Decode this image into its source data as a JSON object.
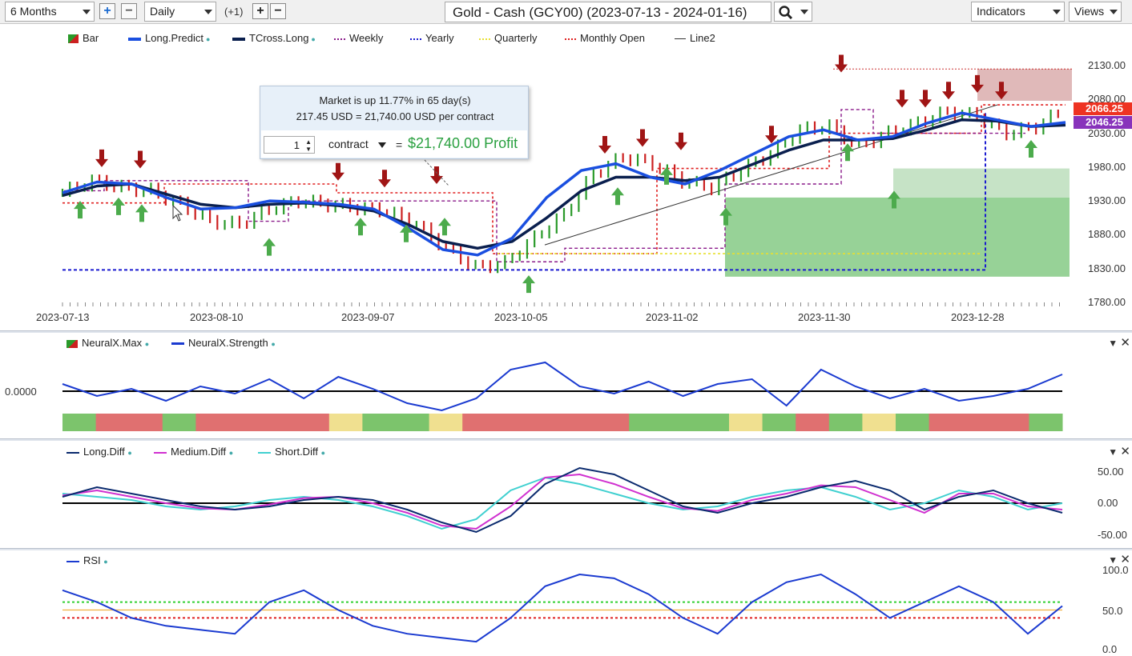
{
  "toolbar": {
    "range": "6 Months",
    "interval": "Daily",
    "offset": "(+1)",
    "title": "Gold - Cash (GCY00) (2023-07-13 - 2024-01-16)",
    "indicators_label": "Indicators",
    "views_label": "Views",
    "icons": [
      "plus-icon",
      "minus-icon",
      "search-icon",
      "chevron-down-icon"
    ]
  },
  "legend": [
    {
      "label": "Bar",
      "style": "swatch",
      "color": "#cc2020"
    },
    {
      "label": "Long.Predict",
      "style": "solid-thick",
      "color": "#1a4fe0"
    },
    {
      "label": "TCross.Long",
      "style": "solid-thick",
      "color": "#0a1f4e"
    },
    {
      "label": "Weekly",
      "style": "dashed",
      "color": "#8a1a8a"
    },
    {
      "label": "Yearly",
      "style": "dashed",
      "color": "#1a1ad0"
    },
    {
      "label": "Quarterly",
      "style": "dashed",
      "color": "#e8e030"
    },
    {
      "label": "Monthly Open",
      "style": "dashed",
      "color": "#e02020"
    },
    {
      "label": "Line2",
      "style": "solid",
      "color": "#333333"
    }
  ],
  "popup": {
    "line1": "Market is up 11.77% in 65 day(s)",
    "line2": "217.45 USD = 21,740.00 USD per contract",
    "qty": "1",
    "contract_label": "contract",
    "equals": "=",
    "profit": "$21,740.00 Profit"
  },
  "price_axis": {
    "ticks": [
      "2130.00",
      "2080.00",
      "2030.00",
      "1980.00",
      "1930.00",
      "1880.00",
      "1830.00",
      "1780.00"
    ],
    "last_price": "2066.25",
    "predict_price": "2046.25",
    "last_color": "#ee3322",
    "predict_color": "#8833bb"
  },
  "date_axis": [
    "2023-07-13",
    "2023-08-10",
    "2023-09-07",
    "2023-10-05",
    "2023-11-02",
    "2023-11-30",
    "2023-12-28"
  ],
  "neural": {
    "labels": [
      "NeuralX.Max",
      "NeuralX.Strength"
    ],
    "zero_label": "0.0000"
  },
  "diff": {
    "labels": [
      "Long.Diff",
      "Medium.Diff",
      "Short.Diff"
    ],
    "ticks": [
      "50.00",
      "0.00",
      "-50.00"
    ]
  },
  "rsi": {
    "label": "RSI",
    "ticks": [
      "100.0",
      "50.0",
      "0.0"
    ]
  },
  "chart_data": {
    "type": "line",
    "price_range": [
      1780,
      2130
    ],
    "close_estimates": [
      1942,
      1960,
      1950,
      1945,
      1925,
      1900,
      1895,
      1918,
      1930,
      1925,
      1920,
      1915,
      1895,
      1860,
      1832,
      1838,
      1875,
      1910,
      1970,
      1995,
      1985,
      1960,
      1950,
      1975,
      2000,
      2035,
      2040,
      2010,
      2030,
      2045,
      2062,
      2055,
      2030,
      2040,
      2066
    ],
    "long_predict": [
      1942,
      1958,
      1955,
      1935,
      1918,
      1920,
      1930,
      1928,
      1925,
      1918,
      1890,
      1858,
      1850,
      1875,
      1935,
      1975,
      1985,
      1965,
      1955,
      1975,
      2000,
      2025,
      2035,
      2020,
      2025,
      2045,
      2060,
      2050,
      2040,
      2046
    ],
    "tcross_long": [
      1938,
      1952,
      1955,
      1940,
      1925,
      1920,
      1925,
      1927,
      1923,
      1915,
      1895,
      1870,
      1860,
      1870,
      1905,
      1945,
      1965,
      1965,
      1960,
      1965,
      1985,
      2005,
      2020,
      2020,
      2022,
      2035,
      2050,
      2048,
      2040,
      2042
    ],
    "neural_strength": [
      0.3,
      -0.2,
      0.1,
      -0.4,
      0.2,
      -0.1,
      0.5,
      -0.3,
      0.6,
      0.1,
      -0.5,
      -0.8,
      -0.3,
      0.9,
      1.2,
      0.2,
      -0.1,
      0.4,
      -0.2,
      0.3,
      0.5,
      -0.6,
      0.9,
      0.2,
      -0.3,
      0.1,
      -0.4,
      -0.2,
      0.1,
      0.7
    ],
    "neural_max_colors": [
      "green",
      "red",
      "red",
      "green",
      "red",
      "red",
      "red",
      "red",
      "yellow",
      "green",
      "green",
      "yellow",
      "red",
      "red",
      "red",
      "red",
      "red",
      "green",
      "green",
      "green",
      "yellow",
      "green",
      "red",
      "green",
      "yellow",
      "green",
      "red",
      "red",
      "red",
      "green"
    ],
    "long_diff": [
      10,
      25,
      15,
      5,
      -5,
      -10,
      -5,
      5,
      10,
      5,
      -10,
      -30,
      -45,
      -20,
      30,
      55,
      45,
      20,
      -5,
      -15,
      0,
      10,
      25,
      35,
      20,
      -10,
      10,
      20,
      0,
      -15
    ],
    "medium_diff": [
      12,
      20,
      10,
      0,
      -8,
      -10,
      -2,
      8,
      10,
      0,
      -15,
      -35,
      -40,
      -5,
      40,
      45,
      30,
      10,
      -8,
      -12,
      5,
      15,
      28,
      25,
      5,
      -15,
      15,
      15,
      -5,
      -10
    ],
    "short_diff": [
      15,
      10,
      5,
      -5,
      -10,
      -5,
      5,
      10,
      5,
      -5,
      -20,
      -40,
      -25,
      20,
      40,
      30,
      15,
      0,
      -10,
      -5,
      10,
      20,
      25,
      10,
      -10,
      0,
      20,
      10,
      -10,
      0
    ],
    "rsi": [
      75,
      60,
      40,
      30,
      25,
      20,
      60,
      75,
      50,
      30,
      20,
      15,
      10,
      40,
      80,
      95,
      90,
      70,
      40,
      20,
      60,
      85,
      95,
      70,
      40,
      60,
      80,
      60,
      20,
      55
    ],
    "rsi_levels": {
      "upper": 60,
      "middle": 50,
      "lower": 40
    }
  }
}
